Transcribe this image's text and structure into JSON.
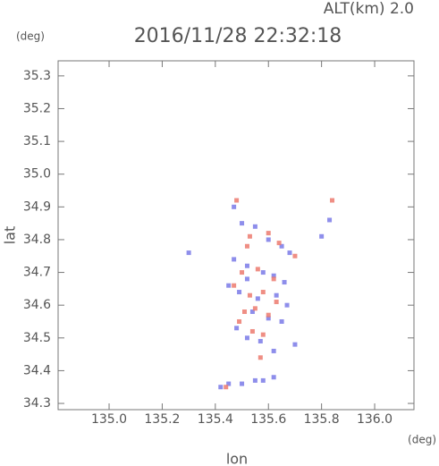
{
  "chart_data": {
    "type": "scatter",
    "title": "2016/11/28 22:32:18",
    "subtitle": "ALT(km) 2.0",
    "x_label": "lon",
    "x_unit": "(deg)",
    "y_label": "lat",
    "y_unit": "(deg)",
    "xlim": [
      134.808,
      136.148
    ],
    "ylim": [
      34.281,
      35.346
    ],
    "xticks": [
      {
        "value": 135,
        "label": "135.0"
      },
      135.2,
      135.4,
      135.6,
      135.8,
      {
        "value": 136,
        "label": "136.0"
      }
    ],
    "yticks": [
      34.3,
      34.4,
      34.5,
      34.6,
      34.7,
      34.8,
      34.9,
      {
        "value": 35,
        "label": "35.0"
      },
      35.1,
      35.2,
      35.3
    ],
    "series": [
      {
        "color": "#7a7ae8",
        "x": [
          135.47,
          135.5,
          135.55,
          135.6,
          135.65,
          135.68,
          135.52,
          135.58,
          135.62,
          135.66,
          135.45,
          135.49,
          135.56,
          135.63,
          135.67,
          135.54,
          135.6,
          135.65,
          135.48,
          135.52,
          135.57,
          135.7,
          135.62,
          135.8,
          135.83,
          135.3,
          135.42,
          135.45,
          135.5,
          135.55,
          135.58,
          135.62,
          135.47,
          135.52
        ],
        "values": [
          34.9,
          34.85,
          34.84,
          34.8,
          34.78,
          34.76,
          34.72,
          34.7,
          34.69,
          34.67,
          34.66,
          34.64,
          34.62,
          34.63,
          34.6,
          34.58,
          34.56,
          34.55,
          34.53,
          34.5,
          34.49,
          34.48,
          34.46,
          34.81,
          34.86,
          34.76,
          34.35,
          34.36,
          34.36,
          34.37,
          34.37,
          34.38,
          34.74,
          34.68
        ]
      },
      {
        "color": "#ec7a6e",
        "x": [
          135.48,
          135.53,
          135.6,
          135.64,
          135.5,
          135.56,
          135.62,
          135.47,
          135.53,
          135.58,
          135.63,
          135.51,
          135.55,
          135.6,
          135.54,
          135.58,
          135.44,
          135.7,
          135.84,
          135.57,
          135.52,
          135.49
        ],
        "values": [
          34.92,
          34.81,
          34.82,
          34.79,
          34.7,
          34.71,
          34.68,
          34.66,
          34.63,
          34.64,
          34.61,
          34.58,
          34.59,
          34.57,
          34.52,
          34.51,
          34.35,
          34.75,
          34.92,
          34.44,
          34.78,
          34.55
        ]
      }
    ]
  }
}
